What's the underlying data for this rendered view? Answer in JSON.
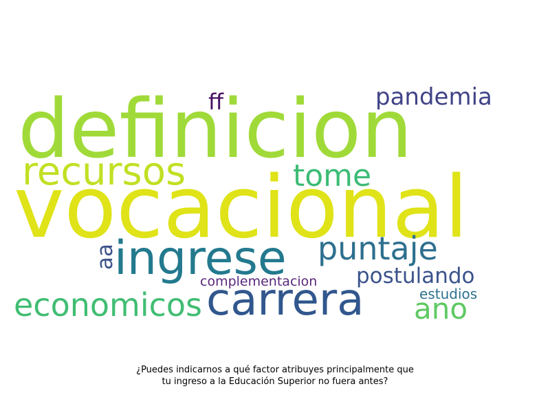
{
  "words": {
    "definicion": {
      "text": "definicion",
      "color": "#a0da39"
    },
    "vocacional": {
      "text": "vocacional",
      "color": "#dfe318"
    },
    "recursos": {
      "text": "recursos",
      "color": "#c2df23"
    },
    "pandemia": {
      "text": "pandemia",
      "color": "#404387"
    },
    "ff": {
      "text": "ff",
      "color": "#471164"
    },
    "tome": {
      "text": "tome",
      "color": "#3bbb75"
    },
    "ingrese": {
      "text": "ingrese",
      "color": "#23798e"
    },
    "puntaje": {
      "text": "puntaje",
      "color": "#2e6f8e"
    },
    "carrera": {
      "text": "carrera",
      "color": "#31578d"
    },
    "economicos": {
      "text": "economicos",
      "color": "#40bd72"
    },
    "postulando": {
      "text": "postulando",
      "color": "#3a538b"
    },
    "complementacion": {
      "text": "complementacion",
      "color": "#59277a"
    },
    "estudios": {
      "text": "estudios",
      "color": "#2c718e"
    },
    "ano": {
      "text": "ano",
      "color": "#5ec962"
    },
    "aa": {
      "text": "aa",
      "color": "#3b528b"
    }
  },
  "caption": {
    "line1": "¿Puedes indicarnos a qué factor atribuyes principalmente que",
    "line2": "tu ingreso a la Educación Superior no fuera antes?"
  }
}
